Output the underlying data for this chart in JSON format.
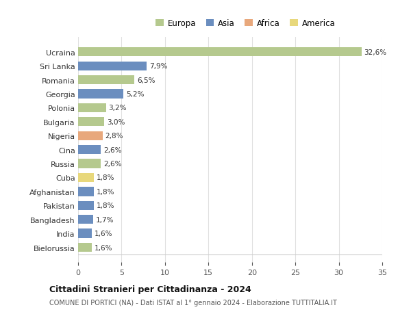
{
  "categories": [
    "Ucraina",
    "Sri Lanka",
    "Romania",
    "Georgia",
    "Polonia",
    "Bulgaria",
    "Nigeria",
    "Cina",
    "Russia",
    "Cuba",
    "Afghanistan",
    "Pakistan",
    "Bangladesh",
    "India",
    "Bielorussia"
  ],
  "values": [
    32.6,
    7.9,
    6.5,
    5.2,
    3.2,
    3.0,
    2.8,
    2.6,
    2.6,
    1.8,
    1.8,
    1.8,
    1.7,
    1.6,
    1.6
  ],
  "labels": [
    "32,6%",
    "7,9%",
    "6,5%",
    "5,2%",
    "3,2%",
    "3,0%",
    "2,8%",
    "2,6%",
    "2,6%",
    "1,8%",
    "1,8%",
    "1,8%",
    "1,7%",
    "1,6%",
    "1,6%"
  ],
  "colors": [
    "#b5c98e",
    "#6b8ebf",
    "#b5c98e",
    "#6b8ebf",
    "#b5c98e",
    "#b5c98e",
    "#e8a87c",
    "#6b8ebf",
    "#b5c98e",
    "#e8d87c",
    "#6b8ebf",
    "#6b8ebf",
    "#6b8ebf",
    "#6b8ebf",
    "#b5c98e"
  ],
  "legend_labels": [
    "Europa",
    "Asia",
    "Africa",
    "America"
  ],
  "legend_colors": [
    "#b5c98e",
    "#6b8ebf",
    "#e8a87c",
    "#e8d87c"
  ],
  "title": "Cittadini Stranieri per Cittadinanza - 2024",
  "subtitle": "COMUNE DI PORTICI (NA) - Dati ISTAT al 1° gennaio 2024 - Elaborazione TUTTITALIA.IT",
  "xlim": [
    0,
    35
  ],
  "xticks": [
    0,
    5,
    10,
    15,
    20,
    25,
    30,
    35
  ],
  "background_color": "#ffffff",
  "grid_color": "#e0e0e0",
  "bar_height": 0.65
}
